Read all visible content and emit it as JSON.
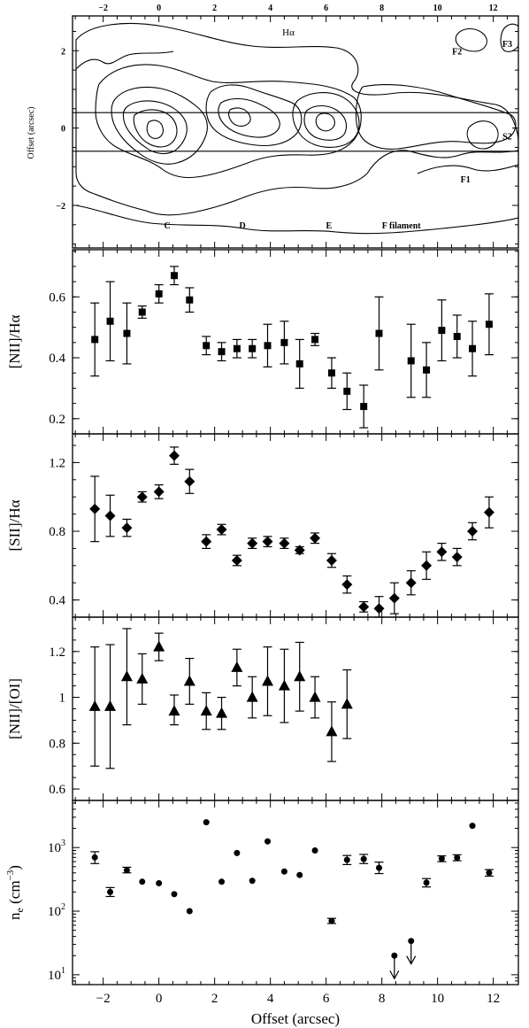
{
  "figure": {
    "xlabel": "Offset (arcsec)",
    "top_panel": {
      "ylabel": "Offset (arcsec)",
      "line_label": "Hα",
      "x_ticks": [
        -2,
        0,
        2,
        4,
        6,
        8,
        10,
        12
      ],
      "y_ticks": [
        -2,
        0,
        2
      ],
      "xlim": [
        -3.1,
        12.9
      ],
      "ylim": [
        -3.1,
        2.9
      ],
      "slit_y": [
        0.4,
        -0.6
      ],
      "annotations": [
        {
          "text": "C",
          "x": 0.3,
          "y": -2.6
        },
        {
          "text": "D",
          "x": 3.0,
          "y": -2.6
        },
        {
          "text": "E",
          "x": 6.1,
          "y": -2.6
        },
        {
          "text": "F filament",
          "x": 8.7,
          "y": -2.6
        },
        {
          "text": "F1",
          "x": 11.0,
          "y": -1.4
        },
        {
          "text": "S2",
          "x": 12.5,
          "y": -0.3
        },
        {
          "text": "F2",
          "x": 10.7,
          "y": 1.9
        },
        {
          "text": "F3",
          "x": 12.5,
          "y": 2.1
        }
      ]
    }
  },
  "chart_data": [
    {
      "type": "scatter",
      "ylabel": "[NII]/Hα",
      "marker": "square",
      "ylim": [
        0.15,
        0.755
      ],
      "y_ticks": [
        0.2,
        0.4,
        0.6
      ],
      "y_tick_labels": [
        "0.2",
        "0.4",
        "0.6"
      ],
      "points": [
        {
          "x": -2.3,
          "y": 0.46,
          "lo": 0.34,
          "hi": 0.58
        },
        {
          "x": -1.75,
          "y": 0.52,
          "lo": 0.39,
          "hi": 0.65
        },
        {
          "x": -1.15,
          "y": 0.48,
          "lo": 0.38,
          "hi": 0.58
        },
        {
          "x": -0.6,
          "y": 0.55,
          "lo": 0.53,
          "hi": 0.57
        },
        {
          "x": 0.0,
          "y": 0.61,
          "lo": 0.58,
          "hi": 0.64
        },
        {
          "x": 0.55,
          "y": 0.67,
          "lo": 0.64,
          "hi": 0.7
        },
        {
          "x": 1.1,
          "y": 0.59,
          "lo": 0.55,
          "hi": 0.63
        },
        {
          "x": 1.7,
          "y": 0.44,
          "lo": 0.41,
          "hi": 0.47
        },
        {
          "x": 2.25,
          "y": 0.42,
          "lo": 0.39,
          "hi": 0.45
        },
        {
          "x": 2.8,
          "y": 0.43,
          "lo": 0.4,
          "hi": 0.46
        },
        {
          "x": 3.35,
          "y": 0.43,
          "lo": 0.4,
          "hi": 0.46
        },
        {
          "x": 3.9,
          "y": 0.44,
          "lo": 0.37,
          "hi": 0.51
        },
        {
          "x": 4.5,
          "y": 0.45,
          "lo": 0.38,
          "hi": 0.52
        },
        {
          "x": 5.05,
          "y": 0.38,
          "lo": 0.3,
          "hi": 0.46
        },
        {
          "x": 5.6,
          "y": 0.46,
          "lo": 0.44,
          "hi": 0.48
        },
        {
          "x": 6.2,
          "y": 0.35,
          "lo": 0.3,
          "hi": 0.4
        },
        {
          "x": 6.75,
          "y": 0.29,
          "lo": 0.23,
          "hi": 0.35
        },
        {
          "x": 7.35,
          "y": 0.24,
          "lo": 0.17,
          "hi": 0.31
        },
        {
          "x": 7.9,
          "y": 0.48,
          "lo": 0.36,
          "hi": 0.6
        },
        {
          "x": 9.05,
          "y": 0.39,
          "lo": 0.27,
          "hi": 0.51
        },
        {
          "x": 9.6,
          "y": 0.36,
          "lo": 0.27,
          "hi": 0.45
        },
        {
          "x": 10.15,
          "y": 0.49,
          "lo": 0.39,
          "hi": 0.59
        },
        {
          "x": 10.7,
          "y": 0.47,
          "lo": 0.4,
          "hi": 0.54
        },
        {
          "x": 11.25,
          "y": 0.43,
          "lo": 0.34,
          "hi": 0.52
        },
        {
          "x": 11.85,
          "y": 0.51,
          "lo": 0.41,
          "hi": 0.61
        }
      ]
    },
    {
      "type": "scatter",
      "ylabel": "[SII]/Hα",
      "marker": "diamond",
      "ylim": [
        0.3,
        1.367
      ],
      "y_ticks": [
        0.4,
        0.8,
        1.2
      ],
      "y_tick_labels": [
        "0.4",
        "0.8",
        "1.2"
      ],
      "points": [
        {
          "x": -2.3,
          "y": 0.93,
          "lo": 0.74,
          "hi": 1.12
        },
        {
          "x": -1.75,
          "y": 0.89,
          "lo": 0.77,
          "hi": 1.01
        },
        {
          "x": -1.15,
          "y": 0.82,
          "lo": 0.77,
          "hi": 0.87
        },
        {
          "x": -0.6,
          "y": 1.0,
          "lo": 0.97,
          "hi": 1.03
        },
        {
          "x": 0.0,
          "y": 1.03,
          "lo": 0.99,
          "hi": 1.07
        },
        {
          "x": 0.55,
          "y": 1.24,
          "lo": 1.19,
          "hi": 1.29
        },
        {
          "x": 1.1,
          "y": 1.09,
          "lo": 1.02,
          "hi": 1.16
        },
        {
          "x": 1.7,
          "y": 0.74,
          "lo": 0.7,
          "hi": 0.78
        },
        {
          "x": 2.25,
          "y": 0.81,
          "lo": 0.78,
          "hi": 0.84
        },
        {
          "x": 2.8,
          "y": 0.63,
          "lo": 0.6,
          "hi": 0.66
        },
        {
          "x": 3.35,
          "y": 0.73,
          "lo": 0.7,
          "hi": 0.76
        },
        {
          "x": 3.9,
          "y": 0.74,
          "lo": 0.71,
          "hi": 0.77
        },
        {
          "x": 4.5,
          "y": 0.73,
          "lo": 0.7,
          "hi": 0.76
        },
        {
          "x": 5.05,
          "y": 0.69,
          "lo": 0.67,
          "hi": 0.71
        },
        {
          "x": 5.6,
          "y": 0.76,
          "lo": 0.73,
          "hi": 0.79
        },
        {
          "x": 6.2,
          "y": 0.63,
          "lo": 0.59,
          "hi": 0.67
        },
        {
          "x": 6.75,
          "y": 0.49,
          "lo": 0.44,
          "hi": 0.54
        },
        {
          "x": 7.35,
          "y": 0.36,
          "lo": 0.33,
          "hi": 0.39
        },
        {
          "x": 7.9,
          "y": 0.35,
          "lo": 0.3,
          "hi": 0.42
        },
        {
          "x": 8.45,
          "y": 0.41,
          "lo": 0.32,
          "hi": 0.5
        },
        {
          "x": 9.05,
          "y": 0.5,
          "lo": 0.43,
          "hi": 0.57
        },
        {
          "x": 9.6,
          "y": 0.6,
          "lo": 0.52,
          "hi": 0.68
        },
        {
          "x": 10.15,
          "y": 0.68,
          "lo": 0.63,
          "hi": 0.73
        },
        {
          "x": 10.7,
          "y": 0.65,
          "lo": 0.6,
          "hi": 0.7
        },
        {
          "x": 11.25,
          "y": 0.8,
          "lo": 0.75,
          "hi": 0.85
        },
        {
          "x": 11.85,
          "y": 0.91,
          "lo": 0.82,
          "hi": 1.0
        }
      ]
    },
    {
      "type": "scatter",
      "ylabel": "[NII]/[OI]",
      "marker": "triangle",
      "ylim": [
        0.55,
        1.35
      ],
      "y_ticks": [
        0.6,
        0.8,
        1.0,
        1.2
      ],
      "y_tick_labels": [
        "0.6",
        "0.8",
        "1",
        "1.2"
      ],
      "points": [
        {
          "x": -2.3,
          "y": 0.96,
          "lo": 0.7,
          "hi": 1.22
        },
        {
          "x": -1.75,
          "y": 0.96,
          "lo": 0.69,
          "hi": 1.23
        },
        {
          "x": -1.15,
          "y": 1.09,
          "lo": 0.88,
          "hi": 1.3
        },
        {
          "x": -0.6,
          "y": 1.08,
          "lo": 0.97,
          "hi": 1.19
        },
        {
          "x": 0.0,
          "y": 1.22,
          "lo": 1.16,
          "hi": 1.28
        },
        {
          "x": 0.55,
          "y": 0.94,
          "lo": 0.88,
          "hi": 1.01
        },
        {
          "x": 1.1,
          "y": 1.07,
          "lo": 0.97,
          "hi": 1.17
        },
        {
          "x": 1.7,
          "y": 0.94,
          "lo": 0.86,
          "hi": 1.02
        },
        {
          "x": 2.25,
          "y": 0.93,
          "lo": 0.86,
          "hi": 1.0
        },
        {
          "x": 2.8,
          "y": 1.13,
          "lo": 1.05,
          "hi": 1.21
        },
        {
          "x": 3.35,
          "y": 1.0,
          "lo": 0.91,
          "hi": 1.09
        },
        {
          "x": 3.9,
          "y": 1.07,
          "lo": 0.92,
          "hi": 1.22
        },
        {
          "x": 4.5,
          "y": 1.05,
          "lo": 0.89,
          "hi": 1.21
        },
        {
          "x": 5.05,
          "y": 1.09,
          "lo": 0.94,
          "hi": 1.24
        },
        {
          "x": 5.6,
          "y": 1.0,
          "lo": 0.91,
          "hi": 1.09
        },
        {
          "x": 6.2,
          "y": 0.85,
          "lo": 0.72,
          "hi": 0.98
        },
        {
          "x": 6.75,
          "y": 0.97,
          "lo": 0.82,
          "hi": 1.12
        }
      ]
    },
    {
      "type": "scatter",
      "ylabel": "n_e (cm^-3)",
      "marker": "circle",
      "yscale": "log",
      "ylim": [
        7,
        5500
      ],
      "y_ticks": [
        10,
        100,
        1000
      ],
      "y_tick_labels": [
        "10^1",
        "10^2",
        "10^3"
      ],
      "points": [
        {
          "x": -2.3,
          "y": 700,
          "lo": 560,
          "hi": 860
        },
        {
          "x": -1.75,
          "y": 200,
          "lo": 170,
          "hi": 235
        },
        {
          "x": -1.15,
          "y": 440,
          "lo": 400,
          "hi": 490
        },
        {
          "x": -0.6,
          "y": 290
        },
        {
          "x": 0.0,
          "y": 275
        },
        {
          "x": 0.55,
          "y": 185
        },
        {
          "x": 1.1,
          "y": 100
        },
        {
          "x": 1.7,
          "y": 2500
        },
        {
          "x": 2.25,
          "y": 290
        },
        {
          "x": 2.8,
          "y": 820
        },
        {
          "x": 3.35,
          "y": 300
        },
        {
          "x": 3.9,
          "y": 1250
        },
        {
          "x": 4.5,
          "y": 420
        },
        {
          "x": 5.05,
          "y": 370
        },
        {
          "x": 5.6,
          "y": 900
        },
        {
          "x": 6.2,
          "y": 70,
          "lo": 64,
          "hi": 77
        },
        {
          "x": 6.75,
          "y": 640,
          "lo": 540,
          "hi": 750
        },
        {
          "x": 7.35,
          "y": 660,
          "lo": 560,
          "hi": 780
        },
        {
          "x": 7.9,
          "y": 480,
          "lo": 390,
          "hi": 590
        },
        {
          "x": 8.45,
          "y": 20,
          "upper_limit": true
        },
        {
          "x": 9.05,
          "y": 34,
          "upper_limit": true
        },
        {
          "x": 9.6,
          "y": 280,
          "lo": 240,
          "hi": 325
        },
        {
          "x": 10.15,
          "y": 670,
          "lo": 600,
          "hi": 740
        },
        {
          "x": 10.7,
          "y": 690,
          "lo": 620,
          "hi": 770
        },
        {
          "x": 11.25,
          "y": 2200
        },
        {
          "x": 11.85,
          "y": 400,
          "lo": 355,
          "hi": 450
        }
      ]
    }
  ]
}
